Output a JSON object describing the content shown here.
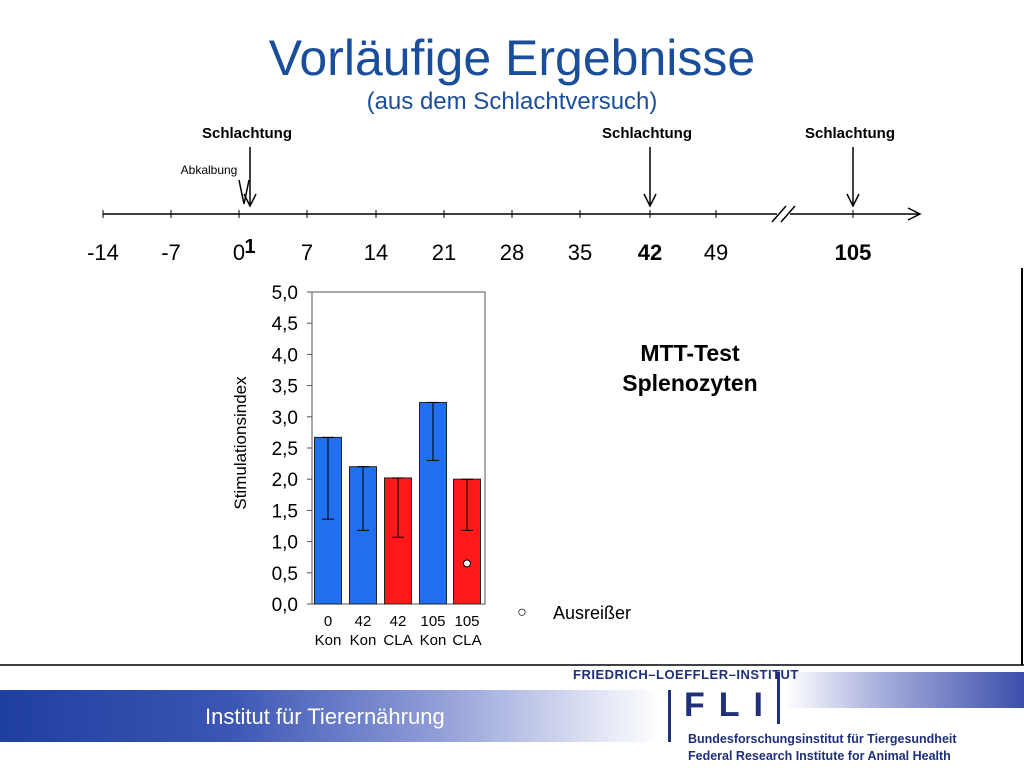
{
  "header": {
    "title": "Vorläufige Ergebnisse",
    "subtitle": "(aus dem Schlachtversuch)"
  },
  "timeline": {
    "events": [
      {
        "label": "Schlachtung",
        "day": 1
      },
      {
        "label": "Schlachtung",
        "day": 42
      },
      {
        "label": "Schlachtung",
        "day": 105
      }
    ],
    "secondary_event": {
      "label": "Abkalbung",
      "day": 0
    },
    "ticks": [
      "-14",
      "-7",
      "0",
      "1",
      "7",
      "14",
      "21",
      "28",
      "35",
      "42",
      "49",
      "105"
    ],
    "bold_ticks": [
      "1",
      "42",
      "105"
    ]
  },
  "chart_data": {
    "type": "bar",
    "ylabel": "Stimulationsindex",
    "ylim": [
      0,
      5
    ],
    "yticks": [
      "0,0",
      "0,5",
      "1,0",
      "1,5",
      "2,0",
      "2,5",
      "3,0",
      "3,5",
      "4,0",
      "4,5",
      "5,0"
    ],
    "categories": [
      {
        "day": "0",
        "group": "Kon"
      },
      {
        "day": "42",
        "group": "Kon"
      },
      {
        "day": "42",
        "group": "CLA"
      },
      {
        "day": "105",
        "group": "Kon"
      },
      {
        "day": "105",
        "group": "CLA"
      }
    ],
    "values": [
      2.67,
      2.2,
      2.02,
      3.23,
      2.0
    ],
    "error_low": [
      1.36,
      1.18,
      1.07,
      2.3,
      1.18
    ],
    "error_high": [
      2.67,
      2.2,
      2.02,
      3.23,
      2.0
    ],
    "colors": [
      "#1f6fef",
      "#1f6fef",
      "#ff1a1a",
      "#1f6fef",
      "#ff1a1a"
    ],
    "outliers": [
      {
        "bar": 4,
        "value": 0.65
      }
    ],
    "annotation": [
      "MTT-Test",
      "Splenozyten"
    ],
    "legend": {
      "symbol": "○",
      "label": "Ausreißer"
    }
  },
  "footer": {
    "institute": "Institut für Tierernährung",
    "fli_name": "FRIEDRICH–LOEFFLER–INSTITUT",
    "fli_logo": "FLI",
    "fli_line1": "Bundesforschungsinstitut für Tiergesundheit",
    "fli_line2": "Federal Research Institute for Animal Health"
  },
  "colors": {
    "title": "#1a4e9a",
    "blue_bar": "#1f6fef",
    "red_bar": "#ff1a1a",
    "footer_blue": "#1f3f9f"
  }
}
